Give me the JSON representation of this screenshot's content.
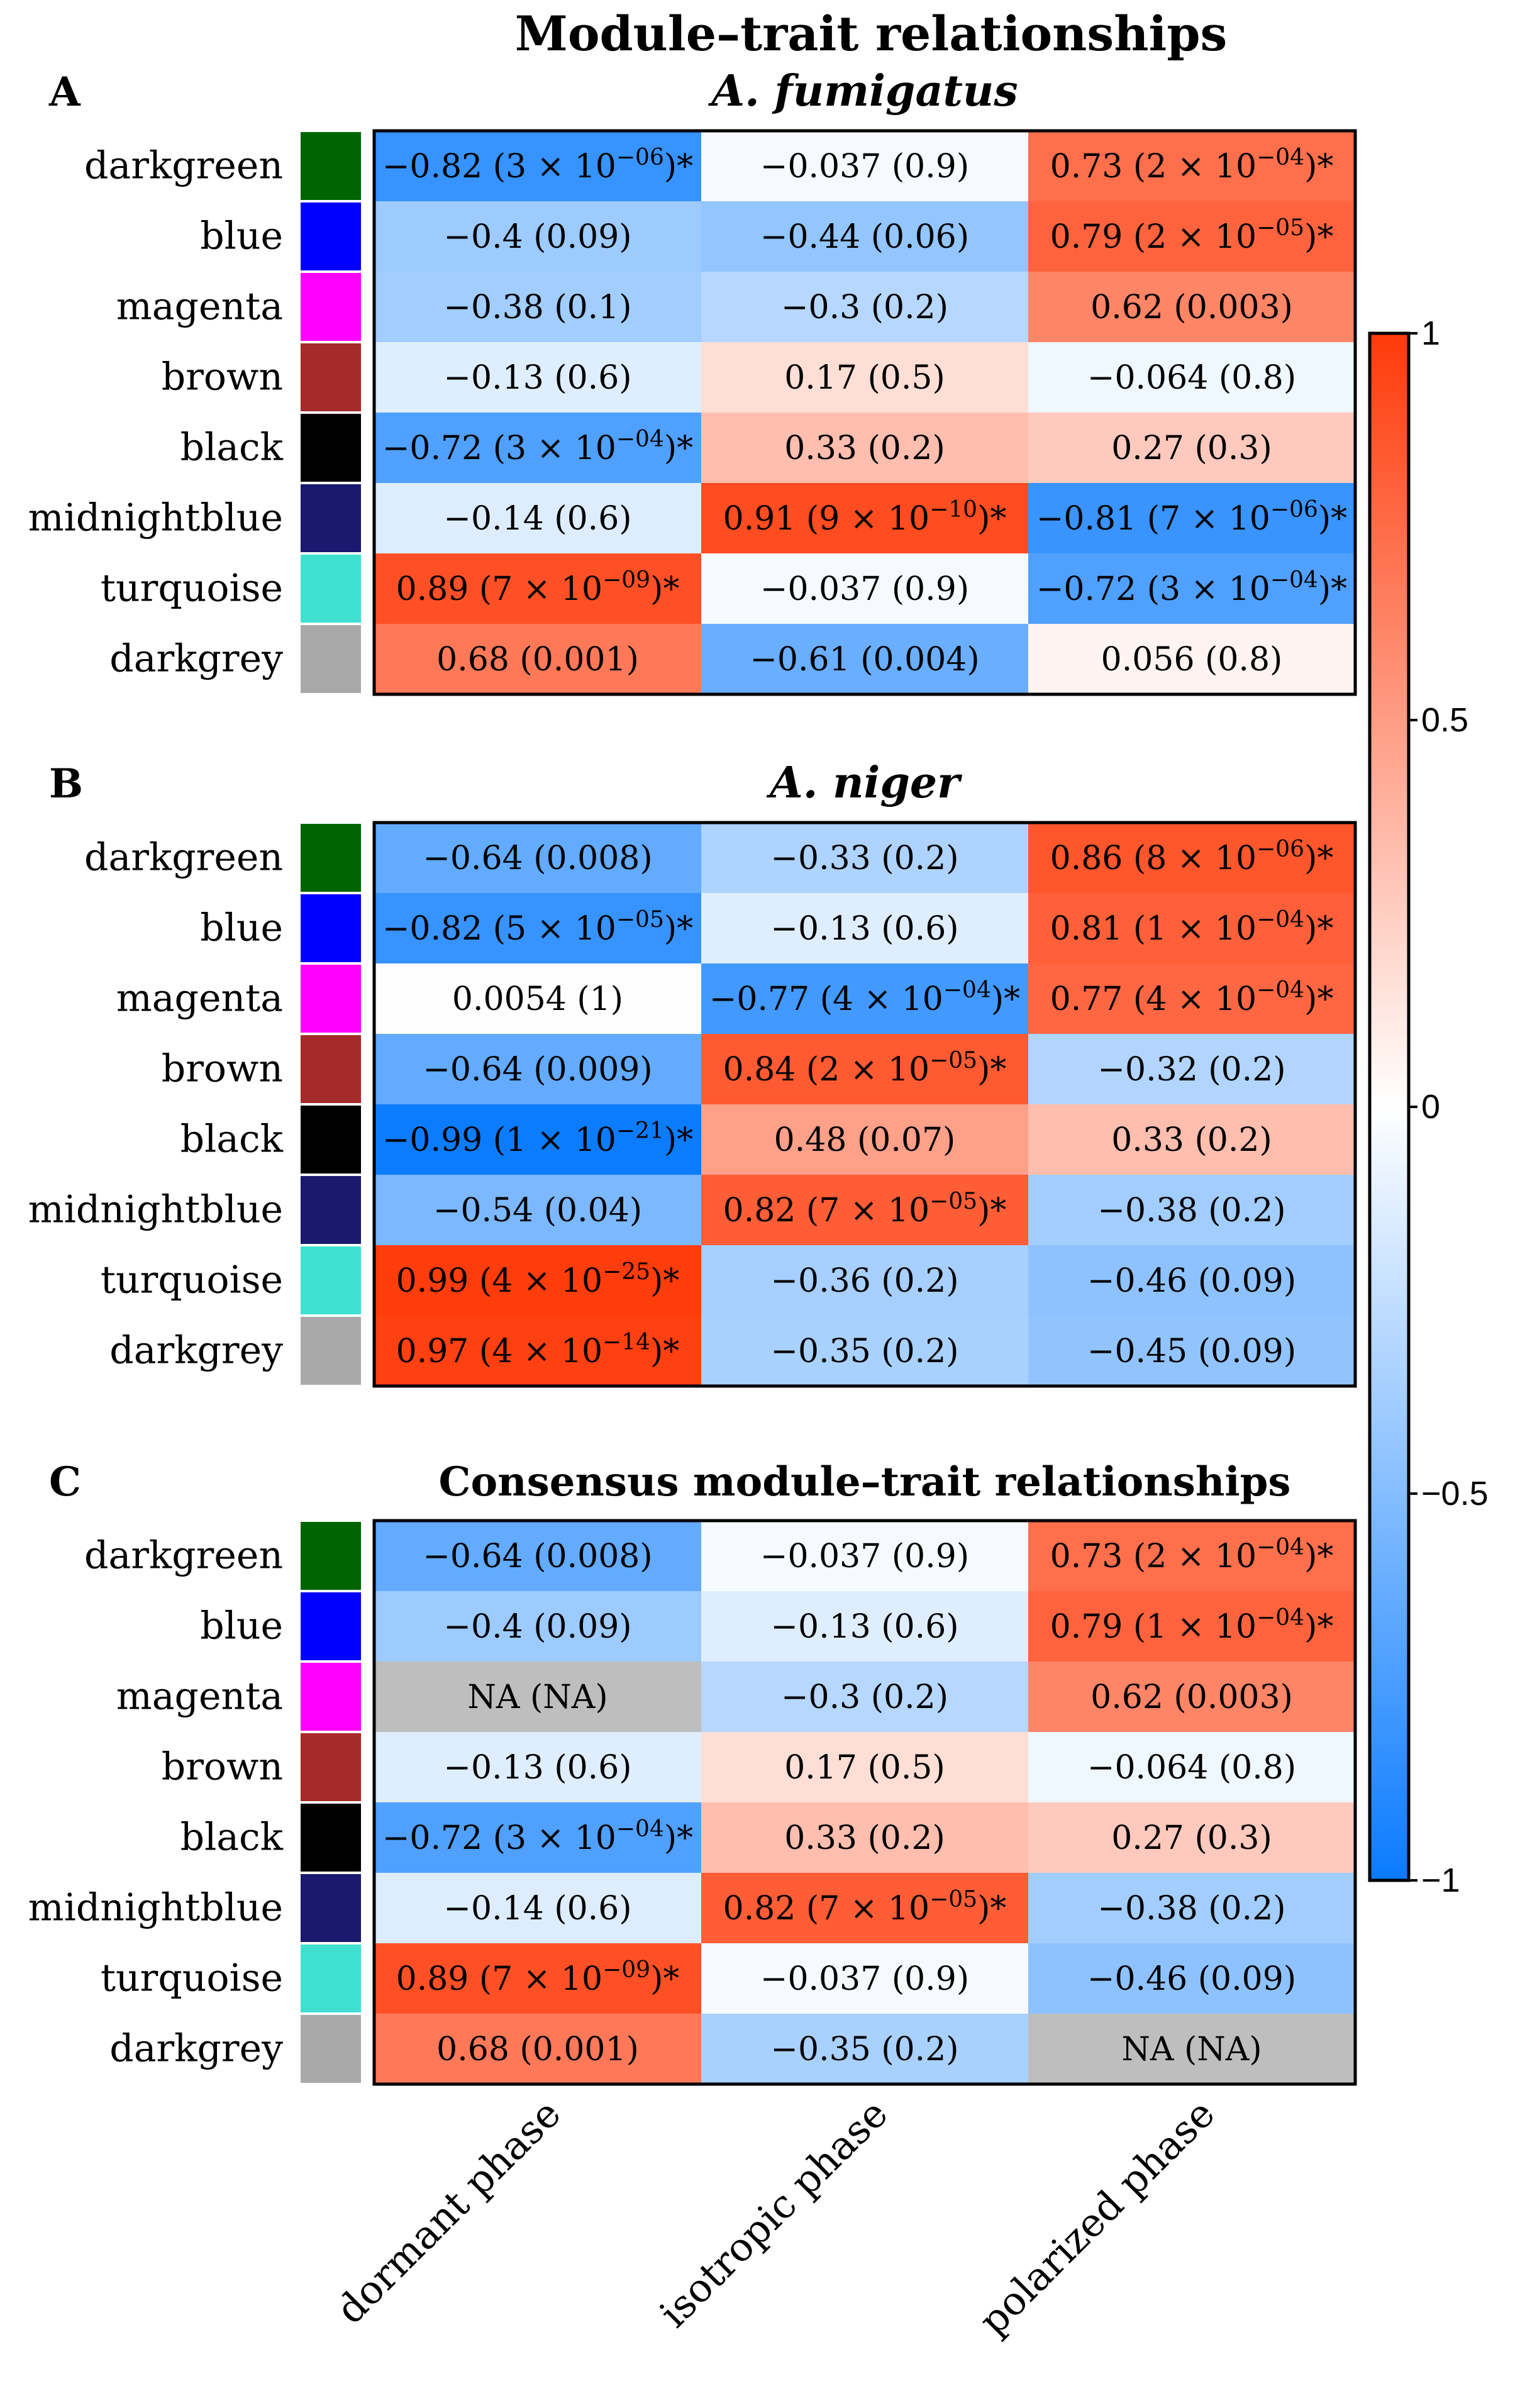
{
  "chart_data": {
    "type": "heatmap",
    "title": "Module–trait relationships",
    "columns": [
      "dormant phase",
      "isotropic phase",
      "polarized phase"
    ],
    "modules": [
      {
        "name": "darkgreen",
        "color": "#006400"
      },
      {
        "name": "blue",
        "color": "#0000FF"
      },
      {
        "name": "magenta",
        "color": "#FF00FF"
      },
      {
        "name": "brown",
        "color": "#A52A2A"
      },
      {
        "name": "black",
        "color": "#000000"
      },
      {
        "name": "midnightblue",
        "color": "#191970"
      },
      {
        "name": "turquoise",
        "color": "#40E0D0"
      },
      {
        "name": "darkgrey",
        "color": "#A9A9A9"
      }
    ],
    "colorbar": {
      "range": [
        -1,
        1
      ],
      "ticks": [
        {
          "value": 1,
          "label": "1"
        },
        {
          "value": 0.5,
          "label": "0.5"
        },
        {
          "value": 0,
          "label": "0"
        },
        {
          "value": -0.5,
          "label": "−0.5"
        },
        {
          "value": -1,
          "label": "−1"
        }
      ],
      "low_color": "#0A7BFF",
      "mid_color": "#FFFFFF",
      "high_color": "#FF3A0A",
      "na_color": "#BEBEBE"
    },
    "panels": [
      {
        "letter": "A",
        "title": "A. fumigatus",
        "title_italic": true,
        "rows": [
          [
            {
              "value": -0.82,
              "text": "−0.82 (3 × 10",
              "sup": "−06",
              "suffix": ")*"
            },
            {
              "value": -0.037,
              "text": "−0.037 (0.9)"
            },
            {
              "value": 0.73,
              "text": "0.73 (2 × 10",
              "sup": "−04",
              "suffix": ")*"
            }
          ],
          [
            {
              "value": -0.4,
              "text": "−0.4 (0.09)"
            },
            {
              "value": -0.44,
              "text": "−0.44 (0.06)"
            },
            {
              "value": 0.79,
              "text": "0.79 (2 × 10",
              "sup": "−05",
              "suffix": ")*"
            }
          ],
          [
            {
              "value": -0.38,
              "text": "−0.38 (0.1)"
            },
            {
              "value": -0.3,
              "text": "−0.3 (0.2)"
            },
            {
              "value": 0.62,
              "text": "0.62 (0.003)"
            }
          ],
          [
            {
              "value": -0.13,
              "text": "−0.13 (0.6)"
            },
            {
              "value": 0.17,
              "text": "0.17 (0.5)"
            },
            {
              "value": -0.064,
              "text": "−0.064 (0.8)"
            }
          ],
          [
            {
              "value": -0.72,
              "text": "−0.72 (3 × 10",
              "sup": "−04",
              "suffix": ")*"
            },
            {
              "value": 0.33,
              "text": "0.33 (0.2)"
            },
            {
              "value": 0.27,
              "text": "0.27 (0.3)"
            }
          ],
          [
            {
              "value": -0.14,
              "text": "−0.14 (0.6)"
            },
            {
              "value": 0.91,
              "text": "0.91 (9 × 10",
              "sup": "−10",
              "suffix": ")*"
            },
            {
              "value": -0.81,
              "text": "−0.81 (7 × 10",
              "sup": "−06",
              "suffix": ")*"
            }
          ],
          [
            {
              "value": 0.89,
              "text": "0.89 (7  × 10",
              "sup": "−09",
              "suffix": ")*"
            },
            {
              "value": -0.037,
              "text": "−0.037 (0.9)"
            },
            {
              "value": -0.72,
              "text": "−0.72 (3 × 10",
              "sup": "−04",
              "suffix": ")*"
            }
          ],
          [
            {
              "value": 0.68,
              "text": "0.68 (0.001)"
            },
            {
              "value": -0.61,
              "text": "−0.61 (0.004)"
            },
            {
              "value": 0.056,
              "text": "0.056 (0.8)"
            }
          ]
        ]
      },
      {
        "letter": "B",
        "title": "A. niger",
        "title_italic": true,
        "rows": [
          [
            {
              "value": -0.64,
              "text": "−0.64 (0.008)"
            },
            {
              "value": -0.33,
              "text": "−0.33 (0.2)"
            },
            {
              "value": 0.86,
              "text": "0.86 (8 × 10",
              "sup": "−06",
              "suffix": ")*"
            }
          ],
          [
            {
              "value": -0.82,
              "text": "−0.82 (5 × 10",
              "sup": "−05",
              "suffix": ")*"
            },
            {
              "value": -0.13,
              "text": "−0.13 (0.6)"
            },
            {
              "value": 0.81,
              "text": "0.81 (1 × 10",
              "sup": "−04",
              "suffix": ")*"
            }
          ],
          [
            {
              "value": 0.0054,
              "text": "0.0054 (1)"
            },
            {
              "value": -0.77,
              "text": "−0.77 (4 × 10",
              "sup": "−04",
              "suffix": ")*"
            },
            {
              "value": 0.77,
              "text": "0.77 (4 × 10",
              "sup": "−04",
              "suffix": ")*"
            }
          ],
          [
            {
              "value": -0.64,
              "text": "−0.64 (0.009)"
            },
            {
              "value": 0.84,
              "text": "0.84 (2 × 10",
              "sup": "−05",
              "suffix": ")*"
            },
            {
              "value": -0.32,
              "text": "−0.32 (0.2)"
            }
          ],
          [
            {
              "value": -0.99,
              "text": "−0.99 (1 × 10",
              "sup": "−21",
              "suffix": ")*"
            },
            {
              "value": 0.48,
              "text": "0.48 (0.07)"
            },
            {
              "value": 0.33,
              "text": "0.33 (0.2)"
            }
          ],
          [
            {
              "value": -0.54,
              "text": "−0.54 (0.04)"
            },
            {
              "value": 0.82,
              "text": "0.82 (7 × 10",
              "sup": "−05",
              "suffix": ")*"
            },
            {
              "value": -0.38,
              "text": "−0.38 (0.2)"
            }
          ],
          [
            {
              "value": 0.99,
              "text": "0.99 (4 × 10",
              "sup": "−25",
              "suffix": ")*"
            },
            {
              "value": -0.36,
              "text": "−0.36 (0.2)"
            },
            {
              "value": -0.46,
              "text": "−0.46 (0.09)"
            }
          ],
          [
            {
              "value": 0.97,
              "text": "0.97 (4 × 10",
              "sup": "−14",
              "suffix": ")*"
            },
            {
              "value": -0.35,
              "text": "−0.35 (0.2)"
            },
            {
              "value": -0.45,
              "text": "−0.45 (0.09)"
            }
          ]
        ]
      },
      {
        "letter": "C",
        "title": "Consensus module–trait relationships",
        "title_italic": false,
        "rows": [
          [
            {
              "value": -0.64,
              "text": "−0.64 (0.008)"
            },
            {
              "value": -0.037,
              "text": "−0.037 (0.9)"
            },
            {
              "value": 0.73,
              "text": "0.73 (2 × 10",
              "sup": "−04",
              "suffix": ")*"
            }
          ],
          [
            {
              "value": -0.4,
              "text": "−0.4 (0.09)"
            },
            {
              "value": -0.13,
              "text": "−0.13 (0.6)"
            },
            {
              "value": 0.79,
              "text": "0.79 (1 × 10",
              "sup": "−04",
              "suffix": ")*"
            }
          ],
          [
            {
              "value": null,
              "text": "NA (NA)"
            },
            {
              "value": -0.3,
              "text": "−0.3 (0.2)"
            },
            {
              "value": 0.62,
              "text": "0.62 (0.003)"
            }
          ],
          [
            {
              "value": -0.13,
              "text": "−0.13 (0.6)"
            },
            {
              "value": 0.17,
              "text": "0.17 (0.5)"
            },
            {
              "value": -0.064,
              "text": "−0.064 (0.8)"
            }
          ],
          [
            {
              "value": -0.72,
              "text": "−0.72 (3 × 10",
              "sup": "−04",
              "suffix": ")*"
            },
            {
              "value": 0.33,
              "text": "0.33 (0.2)"
            },
            {
              "value": 0.27,
              "text": "0.27 (0.3)"
            }
          ],
          [
            {
              "value": -0.14,
              "text": "−0.14 (0.6)"
            },
            {
              "value": 0.82,
              "text": "0.82 (7 × 10",
              "sup": "−05",
              "suffix": ")*"
            },
            {
              "value": -0.38,
              "text": "−0.38 (0.2)"
            }
          ],
          [
            {
              "value": 0.89,
              "text": "0.89 (7 × 10",
              "sup": "−09",
              "suffix": ")*"
            },
            {
              "value": -0.037,
              "text": "−0.037 (0.9)"
            },
            {
              "value": -0.46,
              "text": "−0.46 (0.09)"
            }
          ],
          [
            {
              "value": 0.68,
              "text": "0.68 (0.001)"
            },
            {
              "value": -0.35,
              "text": "−0.35 (0.2)"
            },
            {
              "value": null,
              "text": "NA (NA)"
            }
          ]
        ]
      }
    ]
  }
}
